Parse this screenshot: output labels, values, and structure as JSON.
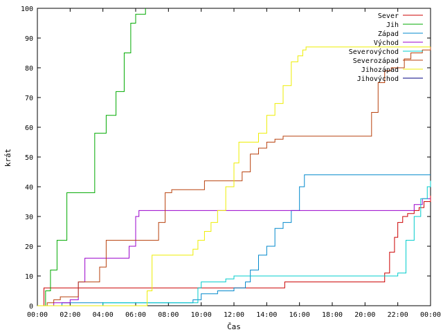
{
  "chart_data": {
    "type": "line",
    "xlabel": "Čas",
    "ylabel": "krát",
    "xlim": [
      0,
      24
    ],
    "ylim": [
      0,
      100
    ],
    "x_ticks": [
      "00:00",
      "02:00",
      "04:00",
      "06:00",
      "08:00",
      "10:00",
      "12:00",
      "14:00",
      "16:00",
      "18:00",
      "20:00",
      "22:00",
      "00:00"
    ],
    "y_ticks": [
      0,
      10,
      20,
      30,
      40,
      50,
      60,
      70,
      80,
      90,
      100
    ],
    "grid": false,
    "legend_position": "top-right",
    "series": [
      {
        "name": "Sever",
        "color": "#cc0000",
        "x": [
          0,
          0.3,
          0.4,
          2,
          4,
          8,
          12,
          15,
          15.1,
          21,
          21.2,
          21.5,
          21.8,
          22,
          22.3,
          22.6,
          23,
          23.3,
          23.6,
          24
        ],
        "y": [
          0,
          0,
          6,
          6,
          6,
          6,
          6,
          6,
          8,
          8,
          11,
          18,
          23,
          28,
          30,
          31,
          32,
          33,
          35,
          37
        ]
      },
      {
        "name": "Jih",
        "color": "#00aa00",
        "x": [
          0,
          0.5,
          0.8,
          1.2,
          1.8,
          2.8,
          3.5,
          4.2,
          4.8,
          5.3,
          5.7,
          6.0,
          6.3,
          6.6
        ],
        "y": [
          0,
          5,
          12,
          22,
          38,
          38,
          58,
          64,
          72,
          85,
          95,
          98,
          98,
          101
        ]
      },
      {
        "name": "Západ",
        "color": "#0088cc",
        "x": [
          0,
          1,
          1.5,
          3,
          6,
          8,
          9,
          9.5,
          10,
          11,
          12,
          12.7,
          13,
          13.5,
          14,
          14.5,
          15,
          15.5,
          16,
          16.3,
          18,
          20,
          22,
          24
        ],
        "y": [
          0,
          0,
          1,
          1,
          1,
          1,
          1,
          2,
          4,
          5,
          6,
          8,
          12,
          17,
          20,
          26,
          28,
          32,
          40,
          44,
          44,
          44,
          44,
          44
        ]
      },
      {
        "name": "Východ",
        "color": "#9900cc",
        "x": [
          0,
          1,
          2,
          2.5,
          2.9,
          3.5,
          5,
          5.6,
          6,
          6.2,
          8,
          10,
          14,
          18,
          22,
          23,
          23.5,
          24
        ],
        "y": [
          0,
          1,
          2,
          8,
          16,
          16,
          16,
          20,
          30,
          32,
          32,
          32,
          32,
          32,
          32,
          34,
          36,
          36
        ]
      },
      {
        "name": "Severovýchod",
        "color": "#00cccc",
        "x": [
          0,
          1,
          4,
          8,
          9.5,
          9.8,
          10,
          11,
          11.5,
          12,
          13,
          14,
          16,
          18,
          20,
          21,
          22,
          22.5,
          23,
          23.4,
          23.8,
          24
        ],
        "y": [
          0,
          0,
          1,
          1,
          1,
          6,
          8,
          8,
          9,
          10,
          10,
          10,
          10,
          10,
          10,
          10,
          11,
          22,
          30,
          36,
          40,
          42
        ]
      },
      {
        "name": "Severozápad",
        "color": "#b8400c",
        "x": [
          0,
          0.6,
          1,
          1.4,
          2,
          2.5,
          3,
          3.4,
          3.8,
          4.2,
          5,
          6,
          6.8,
          7,
          7.4,
          7.8,
          8.2,
          9,
          9.6,
          10.2,
          11,
          12,
          12.5,
          13,
          13.5,
          14,
          14.5,
          15,
          16,
          18,
          20,
          20.4,
          20.8,
          21.2,
          21.6,
          22,
          22.4,
          22.8,
          23,
          23.5,
          24
        ],
        "y": [
          0,
          1,
          2,
          3,
          3,
          8,
          8,
          8,
          13,
          22,
          22,
          22,
          22,
          22,
          28,
          38,
          39,
          39,
          39,
          42,
          42,
          42,
          45,
          51,
          53,
          55,
          56,
          57,
          57,
          57,
          57,
          65,
          75,
          79,
          80,
          80,
          83,
          85,
          85,
          86,
          87
        ]
      },
      {
        "name": "Jihozápad",
        "color": "#eeee00",
        "x": [
          0,
          6,
          6.5,
          6.7,
          7,
          8,
          9,
          9.5,
          9.8,
          10.2,
          10.6,
          11,
          11.5,
          12,
          12.3,
          12.6,
          13,
          13.5,
          14,
          14.5,
          15,
          15.5,
          15.9,
          16.2,
          16.4,
          17,
          19,
          21,
          22,
          23,
          23.5,
          24
        ],
        "y": [
          0,
          0,
          0,
          5,
          17,
          17,
          17,
          19,
          22,
          25,
          28,
          32,
          40,
          48,
          55,
          55,
          55,
          58,
          64,
          68,
          74,
          82,
          84,
          86,
          87,
          87,
          87,
          87,
          87,
          87,
          87,
          87
        ]
      },
      {
        "name": "Jihovýchod",
        "color": "#000080",
        "x": [],
        "y": []
      }
    ]
  }
}
